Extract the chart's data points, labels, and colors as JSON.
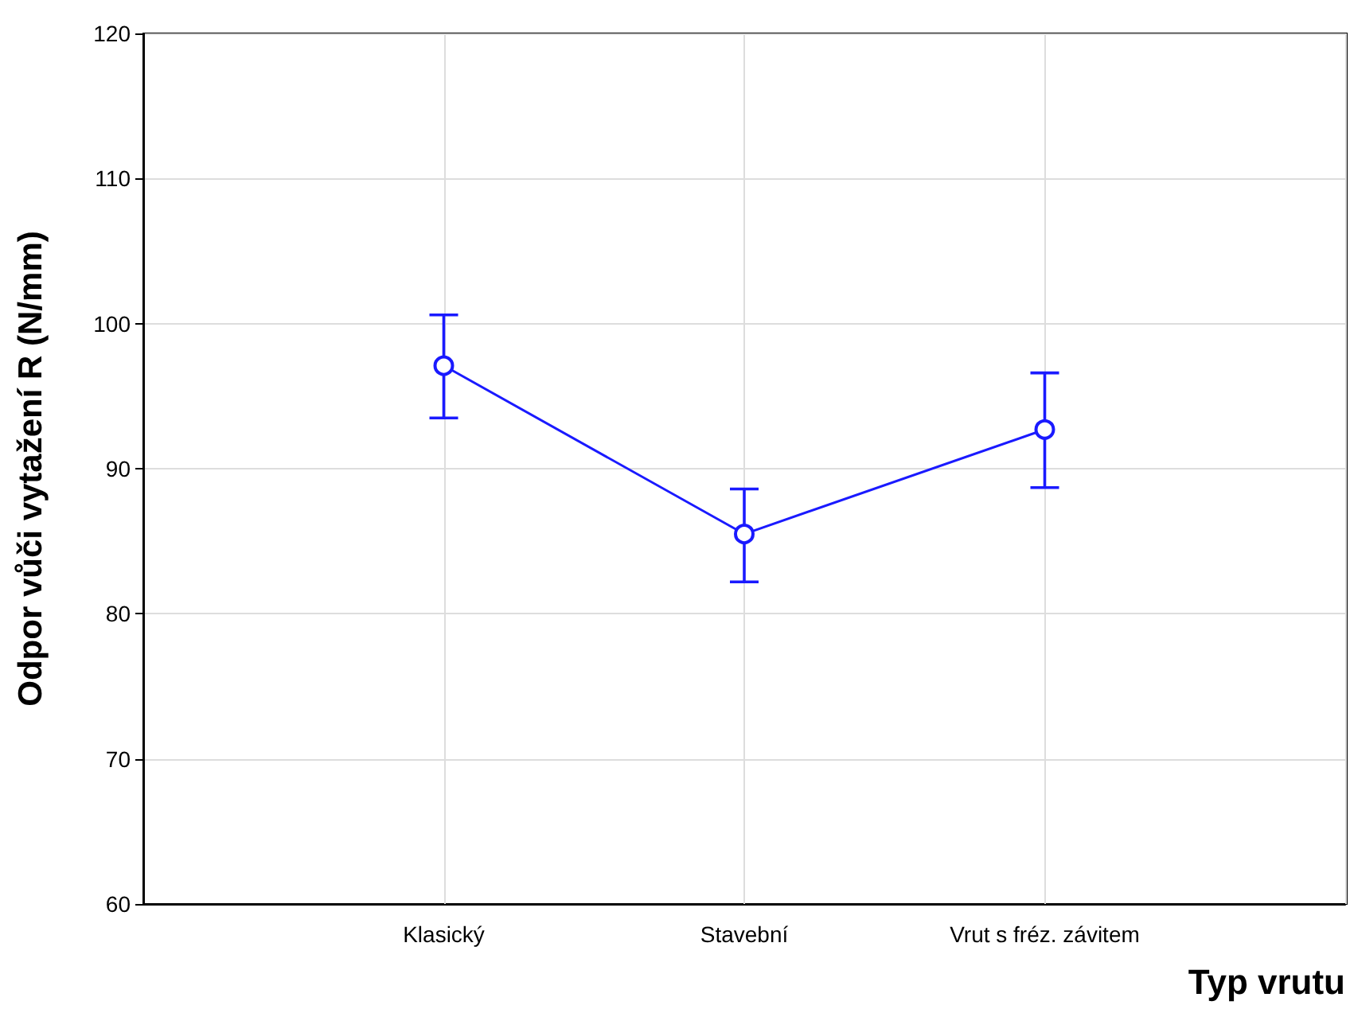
{
  "chart_data": {
    "type": "line",
    "xlabel": "Typ vrutu",
    "ylabel": "Odpor vůči vytažení R (N/mm)",
    "categories": [
      null,
      "Klasický",
      "Stavební",
      "Vrut s fréz. závitem",
      null
    ],
    "series": [
      {
        "color": "#1a1aff",
        "values": [
          null,
          97.1,
          85.5,
          92.7,
          null
        ],
        "errors": [
          null,
          [
            93.5,
            100.6
          ],
          [
            82.2,
            88.6
          ],
          [
            88.7,
            96.6
          ],
          null
        ]
      }
    ],
    "ylim": [
      60,
      120
    ],
    "yticks": [
      60,
      70,
      80,
      90,
      100,
      110,
      120
    ],
    "grid": true,
    "marker": "circle",
    "line_style": "solid"
  }
}
